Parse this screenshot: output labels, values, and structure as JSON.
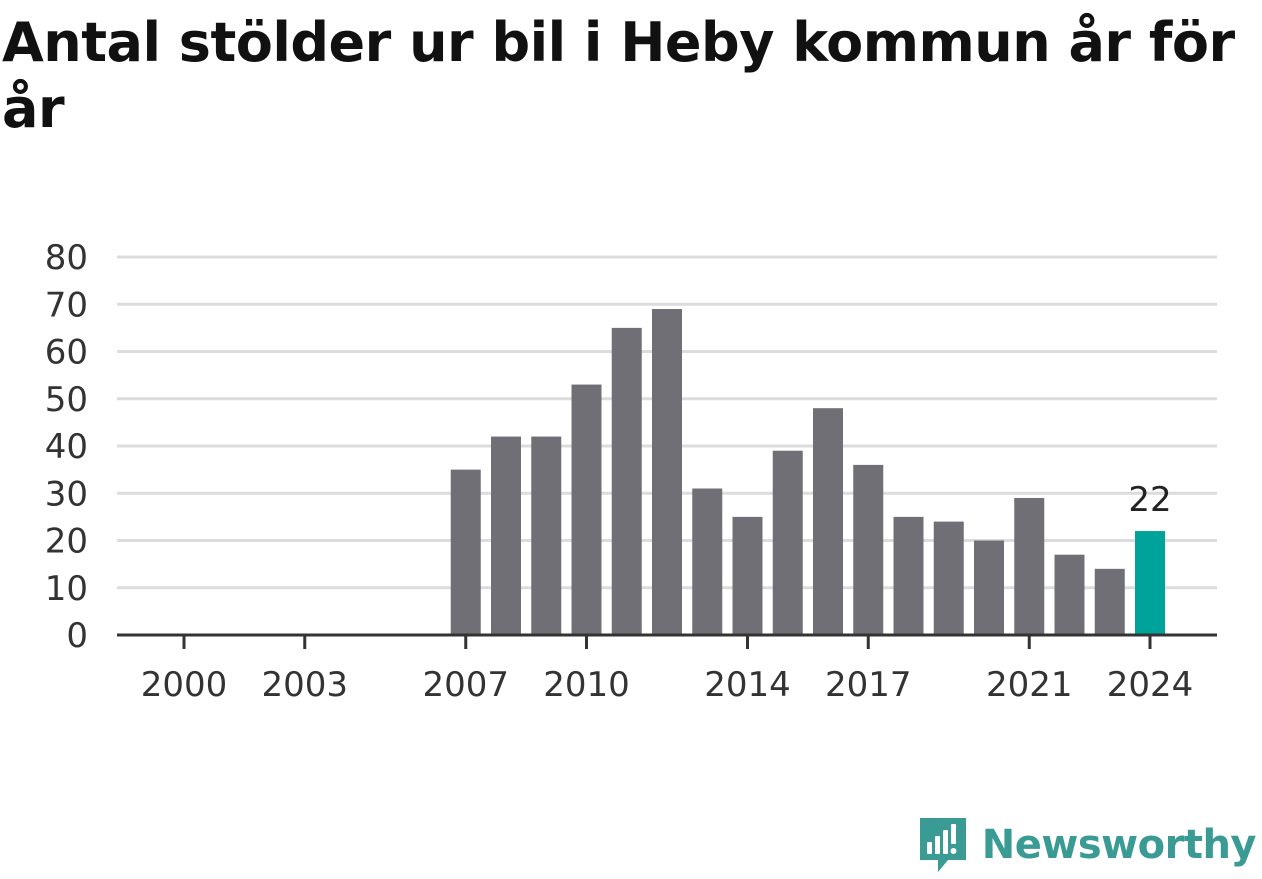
{
  "header": {
    "title": "Antal stölder ur bil i Heby kommun år för år"
  },
  "brand": {
    "name": "Newsworthy",
    "color": "#3a9a94",
    "icon": "newsworthy-logo-icon"
  },
  "colors": {
    "bar": "#706f75",
    "highlight": "#00a39a",
    "grid": "#dcdcdc",
    "axis": "#333333"
  },
  "chart_data": {
    "type": "bar",
    "title": "Antal stölder ur bil i Heby kommun år för år",
    "xlabel": "",
    "ylabel": "",
    "categories": [
      "2000",
      "2001",
      "2002",
      "2003",
      "2004",
      "2005",
      "2006",
      "2007",
      "2008",
      "2009",
      "2010",
      "2011",
      "2012",
      "2013",
      "2014",
      "2015",
      "2016",
      "2017",
      "2018",
      "2019",
      "2020",
      "2021",
      "2022",
      "2023",
      "2024"
    ],
    "values": [
      null,
      null,
      null,
      null,
      null,
      null,
      null,
      35,
      42,
      42,
      53,
      65,
      69,
      31,
      25,
      39,
      48,
      36,
      25,
      24,
      20,
      29,
      17,
      14,
      22
    ],
    "highlight_category": "2024",
    "data_labels": [
      {
        "category": "2024",
        "text": "22"
      }
    ],
    "x_tick_labels": [
      "2000",
      "2003",
      "2007",
      "2010",
      "2014",
      "2017",
      "2021",
      "2024"
    ],
    "y_ticks": [
      "0",
      "10",
      "20",
      "30",
      "40",
      "50",
      "60",
      "70",
      "80"
    ],
    "ylim": [
      0,
      80
    ],
    "grid": "horizontal",
    "legend": "none"
  }
}
